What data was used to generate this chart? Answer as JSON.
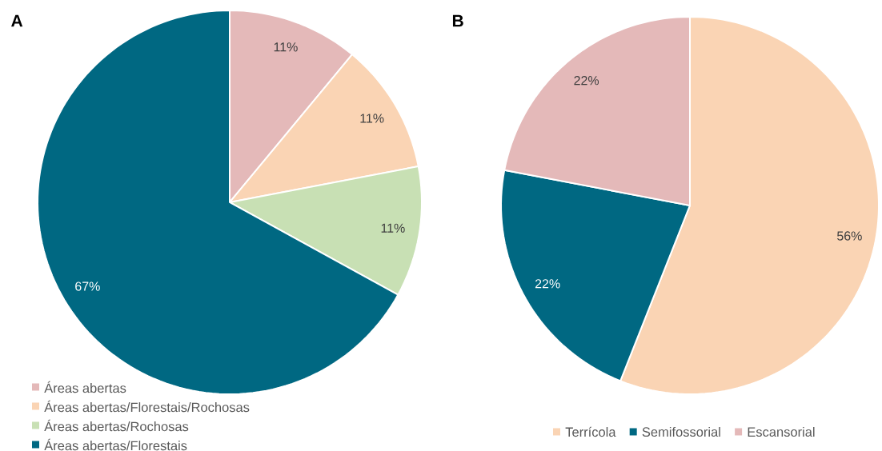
{
  "chart_data": [
    {
      "type": "pie",
      "title": "A",
      "categories": [
        "Áreas abertas",
        "Áreas abertas/Florestais/Rochosas",
        "Áreas abertas/Rochosas",
        "Áreas abertas/Florestais"
      ],
      "values": [
        11,
        11,
        11,
        67
      ],
      "colors": [
        "#e4b9b9",
        "#fad4b4",
        "#c8e0b4",
        "#006882"
      ],
      "value_labels": [
        "11%",
        "11%",
        "11%",
        "67%"
      ],
      "legend": "bottom left"
    },
    {
      "type": "pie",
      "title": "B",
      "categories": [
        "Terrícola",
        "Semifossorial",
        "Escansorial"
      ],
      "values": [
        56,
        22,
        22
      ],
      "colors": [
        "#fad4b4",
        "#006882",
        "#e4b9b9"
      ],
      "value_labels": [
        "56%",
        "22%",
        "22%"
      ],
      "legend": "bottom"
    }
  ]
}
